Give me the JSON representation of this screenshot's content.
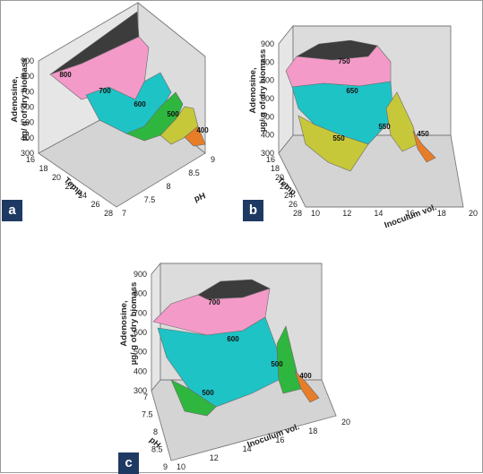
{
  "chart_data": [
    {
      "panel": "a",
      "type": "surface-3d",
      "zlabel": "Adenosine, µg/ g of dry biomass",
      "zticks": [
        300,
        400,
        500,
        600,
        700,
        800,
        900
      ],
      "xlabel": "Temp.",
      "xticks": [
        16,
        18,
        20,
        22,
        24,
        26,
        28
      ],
      "ylabel": "pH",
      "yticks": [
        7,
        7.5,
        8,
        8.5,
        9
      ],
      "contour_labels": [
        "800",
        "700",
        "600",
        "500",
        "400"
      ],
      "colors": {
        "900": "#3c3c3c",
        "800": "#f39ac8",
        "700": "#1ec3c6",
        "600": "#2fb63f",
        "500": "#c6c83a",
        "400": "#e87d28"
      }
    },
    {
      "panel": "b",
      "type": "surface-3d",
      "zlabel": "Adenosine, µg/ g of dry biomass",
      "zticks": [
        300,
        400,
        500,
        600,
        700,
        800,
        900
      ],
      "xlabel": "Temp.",
      "xticks": [
        16,
        18,
        20,
        22,
        24,
        26,
        28
      ],
      "ylabel": "Inoculum vol.",
      "yticks": [
        10,
        12,
        14,
        16,
        18,
        20
      ],
      "contour_labels": [
        "750",
        "650",
        "550",
        "550",
        "450"
      ],
      "colors": {
        "800": "#3c3c3c",
        "750": "#f39ac8",
        "650": "#1ec3c6",
        "550": "#c6c83a",
        "450": "#e87d28"
      }
    },
    {
      "panel": "c",
      "type": "surface-3d",
      "zlabel": "Adenosine, µg/ g of dry biomass",
      "zticks": [
        300,
        400,
        500,
        600,
        700,
        800,
        900
      ],
      "xlabel": "pH",
      "xticks": [
        7,
        7.5,
        8,
        8.5,
        9
      ],
      "ylabel": "Inoculum vol.",
      "yticks": [
        10,
        12,
        14,
        16,
        18,
        20
      ],
      "contour_labels": [
        "700",
        "600",
        "500",
        "500",
        "400"
      ],
      "colors": {
        "800": "#3c3c3c",
        "700": "#f39ac8",
        "600": "#1ec3c6",
        "500": "#2fb63f",
        "400": "#e87d28"
      }
    }
  ],
  "panels": [
    {
      "id": "a",
      "tag": "a"
    },
    {
      "id": "b",
      "tag": "b"
    },
    {
      "id": "c",
      "tag": "c"
    }
  ]
}
